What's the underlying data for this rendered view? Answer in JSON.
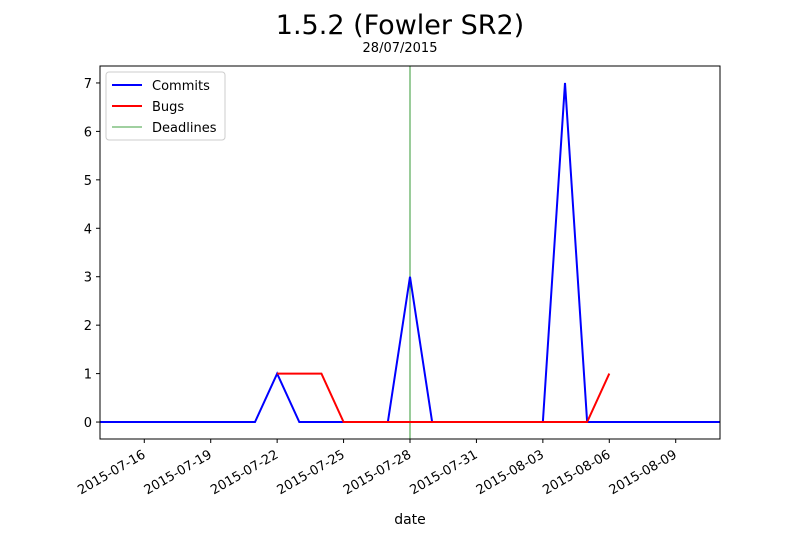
{
  "chart_data": {
    "type": "line",
    "title": "1.5.2 (Fowler SR2)",
    "subtitle": "28/07/2015",
    "xlabel": "date",
    "ylabel": "",
    "xlim": [
      "2015-07-14",
      "2015-08-11"
    ],
    "ylim": [
      -0.35,
      7.35
    ],
    "x_ticks": [
      "2015-07-16",
      "2015-07-19",
      "2015-07-22",
      "2015-07-25",
      "2015-07-28",
      "2015-07-31",
      "2015-08-03",
      "2015-08-06",
      "2015-08-09"
    ],
    "y_ticks": [
      0,
      1,
      2,
      3,
      4,
      5,
      6,
      7
    ],
    "legend_position": "top-left",
    "grid": false,
    "series": [
      {
        "name": "Commits",
        "color": "#0000ff",
        "points": [
          [
            "2015-07-14",
            0
          ],
          [
            "2015-07-21",
            0
          ],
          [
            "2015-07-22",
            1
          ],
          [
            "2015-07-23",
            0
          ],
          [
            "2015-07-27",
            0
          ],
          [
            "2015-07-28",
            3
          ],
          [
            "2015-07-29",
            0
          ],
          [
            "2015-08-03",
            0
          ],
          [
            "2015-08-04",
            7
          ],
          [
            "2015-08-05",
            0
          ],
          [
            "2015-08-11",
            0
          ]
        ]
      },
      {
        "name": "Bugs",
        "color": "#ff0000",
        "points": [
          [
            "2015-07-22",
            1
          ],
          [
            "2015-07-24",
            1
          ],
          [
            "2015-07-25",
            0
          ],
          [
            "2015-07-27",
            0
          ],
          [
            "2015-08-05",
            0
          ],
          [
            "2015-08-06",
            1
          ]
        ]
      }
    ],
    "deadlines": {
      "name": "Deadlines",
      "color": "#008000",
      "dates": [
        "2015-07-28"
      ]
    }
  }
}
